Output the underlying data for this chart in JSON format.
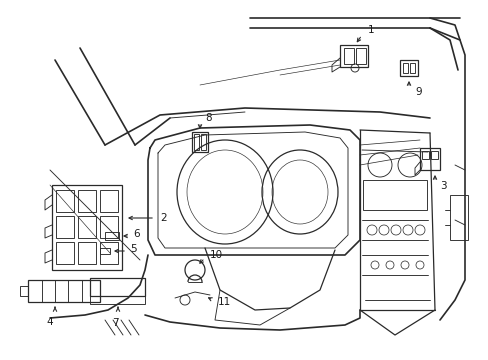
{
  "background_color": "#ffffff",
  "line_color": "#2a2a2a",
  "label_color": "#1a1a1a",
  "fig_width": 4.89,
  "fig_height": 3.6,
  "dpi": 100,
  "border_lw": 1.2,
  "component_lw": 0.9,
  "detail_lw": 0.65,
  "label_fontsize": 7.5
}
